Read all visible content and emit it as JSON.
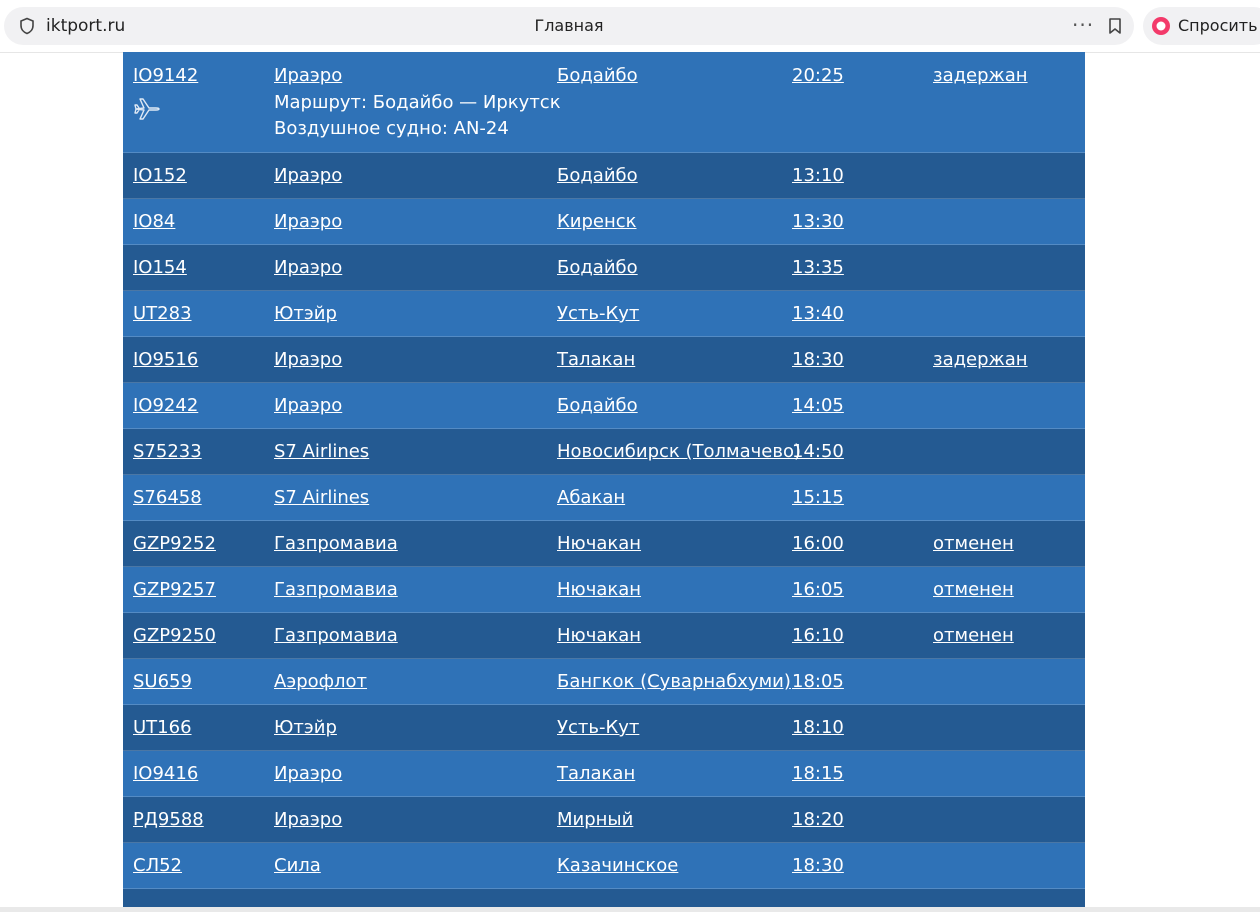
{
  "browser": {
    "domain": "iktport.ru",
    "tab_title": "Главная",
    "ask_button": "Спросить"
  },
  "flights": {
    "first": {
      "flight": "IO9142",
      "airline": "Ираэро",
      "destination": "Бодайбо",
      "time": "20:25",
      "status": "задержан",
      "route": "Маршрут: Бодайбо — Иркутск",
      "aircraft": "Воздушное судно: AN-24"
    },
    "rows": [
      {
        "flight": "IO152",
        "airline": "Ираэро",
        "destination": "Бодайбо",
        "time": "13:10",
        "status": ""
      },
      {
        "flight": "IO84",
        "airline": "Ираэро",
        "destination": "Киренск",
        "time": "13:30",
        "status": ""
      },
      {
        "flight": "IO154",
        "airline": "Ираэро",
        "destination": "Бодайбо",
        "time": "13:35",
        "status": ""
      },
      {
        "flight": "UT283",
        "airline": "Ютэйр",
        "destination": "Усть-Кут",
        "time": "13:40",
        "status": ""
      },
      {
        "flight": "IO9516",
        "airline": "Ираэро",
        "destination": "Талакан",
        "time": "18:30",
        "status": "задержан"
      },
      {
        "flight": "IO9242",
        "airline": "Ираэро",
        "destination": "Бодайбо",
        "time": "14:05",
        "status": ""
      },
      {
        "flight": "S75233",
        "airline": "S7 Airlines",
        "destination": "Новосибирск (Толмачево)",
        "time": "14:50",
        "status": ""
      },
      {
        "flight": "S76458",
        "airline": "S7 Airlines",
        "destination": "Абакан",
        "time": "15:15",
        "status": ""
      },
      {
        "flight": "GZP9252",
        "airline": "Газпромавиа",
        "destination": "Нючакан",
        "time": "16:00",
        "status": "отменен"
      },
      {
        "flight": "GZP9257",
        "airline": "Газпромавиа",
        "destination": "Нючакан",
        "time": "16:05",
        "status": "отменен"
      },
      {
        "flight": "GZP9250",
        "airline": "Газпромавиа",
        "destination": "Нючакан",
        "time": "16:10",
        "status": "отменен"
      },
      {
        "flight": "SU659",
        "airline": "Аэрофлот",
        "destination": "Бангкок (Суварнабхуми)",
        "time": "18:05",
        "status": ""
      },
      {
        "flight": "UT166",
        "airline": "Ютэйр",
        "destination": "Усть-Кут",
        "time": "18:10",
        "status": ""
      },
      {
        "flight": "IO9416",
        "airline": "Ираэро",
        "destination": "Талакан",
        "time": "18:15",
        "status": ""
      },
      {
        "flight": "РД9588",
        "airline": "Ираэро",
        "destination": "Мирный",
        "time": "18:20",
        "status": ""
      },
      {
        "flight": "СЛ52",
        "airline": "Сила",
        "destination": "Казачинское",
        "time": "18:30",
        "status": ""
      }
    ]
  },
  "colors": {
    "row_light": "#2f72b7",
    "row_dark": "#245a92"
  },
  "icons": {
    "site": "shield-icon",
    "menu": "dots-icon",
    "bookmark": "bookmark-icon",
    "ask": "alice-logo-icon",
    "flight": "plane-icon"
  }
}
